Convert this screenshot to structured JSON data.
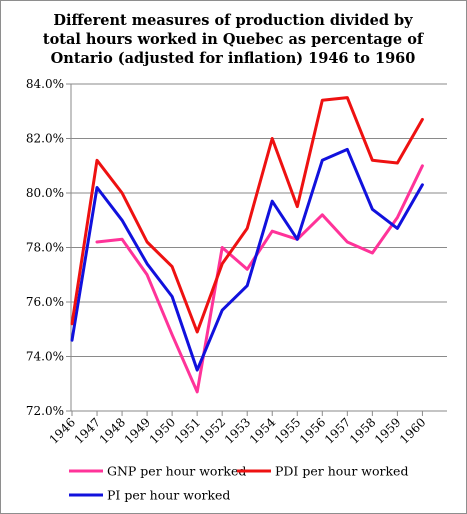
{
  "chart_data": {
    "type": "line",
    "title": "Different measures of production divided by total hours worked in Quebec as percentage of Ontario (adjusted for inflation) 1946 to 1960",
    "title_lines": [
      "Different measures of production divided by",
      "total hours worked in Quebec as percentage of",
      "Ontario (adjusted for inflation) 1946 to 1960"
    ],
    "xlabel": "",
    "ylabel": "",
    "x": [
      "1946",
      "1947",
      "1948",
      "1949",
      "1950",
      "1951",
      "1952",
      "1953",
      "1954",
      "1955",
      "1956",
      "1957",
      "1958",
      "1959",
      "1960"
    ],
    "ylim": [
      72,
      84
    ],
    "yticks": [
      72,
      74,
      76,
      78,
      80,
      82,
      84
    ],
    "ytick_labels": [
      "72.0%",
      "74.0%",
      "76.0%",
      "78.0%",
      "80.0%",
      "82.0%",
      "84.0%"
    ],
    "grid": "horizontal",
    "legend_position": "bottom",
    "series": [
      {
        "name": "GNP per hour worked",
        "color": "#ff3399",
        "values": [
          null,
          78.2,
          78.3,
          77.0,
          74.8,
          72.7,
          78.0,
          77.2,
          78.6,
          78.3,
          79.2,
          78.2,
          77.8,
          79.1,
          81.0
        ]
      },
      {
        "name": "PDI per hour worked",
        "color": "#ee1111",
        "values": [
          75.2,
          81.2,
          80.0,
          78.2,
          77.3,
          74.9,
          77.4,
          78.7,
          82.0,
          79.5,
          83.4,
          83.5,
          81.2,
          81.1,
          82.7
        ]
      },
      {
        "name": "PI per hour worked",
        "color": "#1111dd",
        "values": [
          74.6,
          80.2,
          79.0,
          77.4,
          76.2,
          73.5,
          75.7,
          76.6,
          79.7,
          78.3,
          81.2,
          81.6,
          79.4,
          78.7,
          80.3
        ]
      }
    ]
  }
}
